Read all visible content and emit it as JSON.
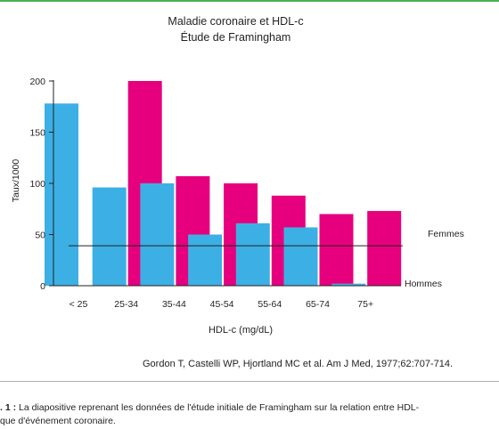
{
  "chart_data": {
    "type": "bar",
    "title": "Maladie coronaire et HDL-c",
    "subtitle": "Étude de Framingham",
    "xlabel": "HDL-c (mg/dL)",
    "ylabel": "Taux/1000",
    "categories": [
      "< 25",
      "25-34",
      "35-44",
      "45-54",
      "55-64",
      "65-74",
      "75+"
    ],
    "ylim": [
      0,
      200
    ],
    "yticks": [
      0,
      50,
      100,
      150,
      200
    ],
    "baseline_value": 39,
    "series": [
      {
        "name": "Hommes",
        "color": "#3cb0e4",
        "values": [
          178,
          96,
          100,
          50,
          61,
          57,
          2
        ]
      },
      {
        "name": "Femmes",
        "color": "#e6007e",
        "values": [
          null,
          200,
          107,
          100,
          88,
          70,
          73
        ]
      }
    ],
    "grid": false
  },
  "reference": "Gordon T, Castelli WP, Hjortland MC et al. Am J Med, 1977;62:707-714.",
  "caption": {
    "lead": ". 1 :",
    "line1": "La diapositive reprenant les données de l'étude initiale de Framingham sur la relation entre HDL-",
    "line2": "que d'événement coronaire."
  }
}
